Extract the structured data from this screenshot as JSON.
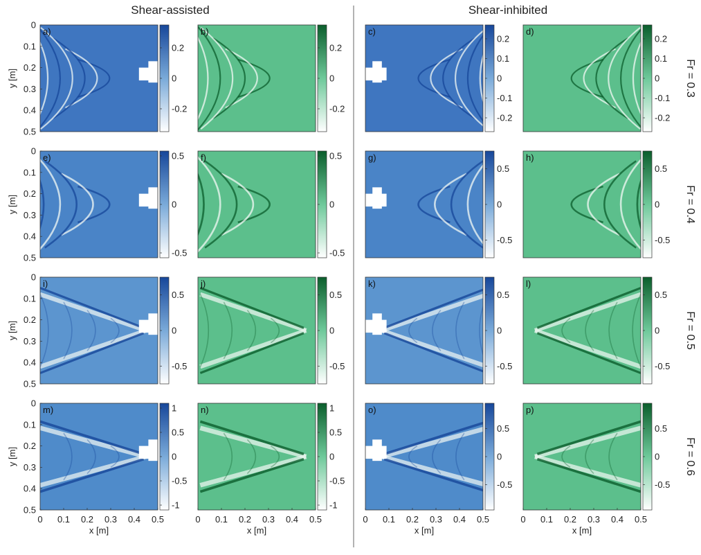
{
  "figure": {
    "group_titles": [
      "Shear-assisted",
      "Shear-inhibited"
    ],
    "row_labels": [
      "Fr = 0.3",
      "Fr = 0.4",
      "Fr = 0.5",
      "Fr = 0.6"
    ],
    "xlabel": "x [m]",
    "ylabel": "y [m]",
    "x_ticks": [
      "0",
      "0.1",
      "0.2",
      "0.3",
      "0.4",
      "0.5"
    ],
    "y_ticks": [
      "0",
      "0.1",
      "0.2",
      "0.3",
      "0.4",
      "0.5"
    ],
    "colors": {
      "measured_dark": "#17479a",
      "measured_mid": "#7aaad9",
      "measured_light": "#ffffff",
      "model_dark": "#0b5e2c",
      "model_mid": "#6ec99a",
      "model_light": "#ffffff",
      "divider": "#999999",
      "obstacle": "#ffffff"
    }
  },
  "chart_data": [
    {
      "panel": "a)",
      "type": "heatmap",
      "kind": "measured",
      "group": "Shear-assisted",
      "Fr": 0.3,
      "xlim": [
        0,
        0.5
      ],
      "ylim": [
        0.5,
        0
      ],
      "xlabel": "",
      "ylabel": "y [m]",
      "colorbar_range": [
        -0.35,
        0.35
      ],
      "colorbar_ticks": [
        "0.2",
        "0",
        "-0.2"
      ]
    },
    {
      "panel": "b)",
      "type": "heatmap",
      "kind": "model",
      "group": "Shear-assisted",
      "Fr": 0.3,
      "xlim": [
        0,
        0.5
      ],
      "ylim": [
        0.5,
        0
      ],
      "xlabel": "",
      "ylabel": "",
      "colorbar_range": [
        -0.35,
        0.35
      ],
      "colorbar_ticks": [
        "0.2",
        "0",
        "-0.2"
      ]
    },
    {
      "panel": "c)",
      "type": "heatmap",
      "kind": "measured",
      "group": "Shear-inhibited",
      "Fr": 0.3,
      "xlim": [
        0,
        0.5
      ],
      "ylim": [
        0.5,
        0
      ],
      "xlabel": "",
      "ylabel": "",
      "colorbar_range": [
        -0.27,
        0.27
      ],
      "colorbar_ticks": [
        "0.2",
        "0.1",
        "0",
        "-0.1",
        "-0.2"
      ]
    },
    {
      "panel": "d)",
      "type": "heatmap",
      "kind": "model",
      "group": "Shear-inhibited",
      "Fr": 0.3,
      "xlim": [
        0,
        0.5
      ],
      "ylim": [
        0.5,
        0
      ],
      "xlabel": "",
      "ylabel": "",
      "colorbar_range": [
        -0.27,
        0.27
      ],
      "colorbar_ticks": [
        "0.2",
        "0.1",
        "0",
        "-0.1",
        "-0.2"
      ]
    },
    {
      "panel": "e)",
      "type": "heatmap",
      "kind": "measured",
      "group": "Shear-assisted",
      "Fr": 0.4,
      "xlim": [
        0,
        0.5
      ],
      "ylim": [
        0.5,
        0
      ],
      "xlabel": "",
      "ylabel": "y [m]",
      "colorbar_range": [
        -0.55,
        0.55
      ],
      "colorbar_ticks": [
        "0.5",
        "0",
        "-0.5"
      ]
    },
    {
      "panel": "f)",
      "type": "heatmap",
      "kind": "model",
      "group": "Shear-assisted",
      "Fr": 0.4,
      "xlim": [
        0,
        0.5
      ],
      "ylim": [
        0.5,
        0
      ],
      "xlabel": "",
      "ylabel": "",
      "colorbar_range": [
        -0.55,
        0.55
      ],
      "colorbar_ticks": [
        "0.5",
        "0",
        "-0.5"
      ]
    },
    {
      "panel": "g)",
      "type": "heatmap",
      "kind": "measured",
      "group": "Shear-inhibited",
      "Fr": 0.4,
      "xlim": [
        0,
        0.5
      ],
      "ylim": [
        0.5,
        0
      ],
      "xlabel": "",
      "ylabel": "",
      "colorbar_range": [
        -0.75,
        0.75
      ],
      "colorbar_ticks": [
        "0.5",
        "0",
        "-0.5"
      ]
    },
    {
      "panel": "h)",
      "type": "heatmap",
      "kind": "model",
      "group": "Shear-inhibited",
      "Fr": 0.4,
      "xlim": [
        0,
        0.5
      ],
      "ylim": [
        0.5,
        0
      ],
      "xlabel": "",
      "ylabel": "",
      "colorbar_range": [
        -0.75,
        0.75
      ],
      "colorbar_ticks": [
        "0.5",
        "0",
        "-0.5"
      ]
    },
    {
      "panel": "i)",
      "type": "heatmap",
      "kind": "measured",
      "group": "Shear-assisted",
      "Fr": 0.5,
      "xlim": [
        0,
        0.5
      ],
      "ylim": [
        0.5,
        0
      ],
      "xlabel": "",
      "ylabel": "y [m]",
      "colorbar_range": [
        -0.75,
        0.75
      ],
      "colorbar_ticks": [
        "0.5",
        "0",
        "-0.5"
      ]
    },
    {
      "panel": "j)",
      "type": "heatmap",
      "kind": "model",
      "group": "Shear-assisted",
      "Fr": 0.5,
      "xlim": [
        0,
        0.5
      ],
      "ylim": [
        0.5,
        0
      ],
      "xlabel": "",
      "ylabel": "",
      "colorbar_range": [
        -0.75,
        0.75
      ],
      "colorbar_ticks": [
        "0.5",
        "0",
        "-0.5"
      ]
    },
    {
      "panel": "k)",
      "type": "heatmap",
      "kind": "measured",
      "group": "Shear-inhibited",
      "Fr": 0.5,
      "xlim": [
        0,
        0.5
      ],
      "ylim": [
        0.5,
        0
      ],
      "xlabel": "",
      "ylabel": "",
      "colorbar_range": [
        -0.75,
        0.75
      ],
      "colorbar_ticks": [
        "0.5",
        "0",
        "-0.5"
      ]
    },
    {
      "panel": "l)",
      "type": "heatmap",
      "kind": "model",
      "group": "Shear-inhibited",
      "Fr": 0.5,
      "xlim": [
        0,
        0.5
      ],
      "ylim": [
        0.5,
        0
      ],
      "xlabel": "",
      "ylabel": "",
      "colorbar_range": [
        -0.75,
        0.75
      ],
      "colorbar_ticks": [
        "0.5",
        "0",
        "-0.5"
      ]
    },
    {
      "panel": "m)",
      "type": "heatmap",
      "kind": "measured",
      "group": "Shear-assisted",
      "Fr": 0.6,
      "xlim": [
        0,
        0.5
      ],
      "ylim": [
        0.5,
        0
      ],
      "xlabel": "x [m]",
      "ylabel": "y [m]",
      "colorbar_range": [
        -1.1,
        1.1
      ],
      "colorbar_ticks": [
        "1",
        "0.5",
        "0",
        "-0.5",
        "-1"
      ]
    },
    {
      "panel": "n)",
      "type": "heatmap",
      "kind": "model",
      "group": "Shear-assisted",
      "Fr": 0.6,
      "xlim": [
        0,
        0.5
      ],
      "ylim": [
        0.5,
        0
      ],
      "xlabel": "x [m]",
      "ylabel": "",
      "colorbar_range": [
        -1.1,
        1.1
      ],
      "colorbar_ticks": [
        "1",
        "0.5",
        "0",
        "-0.5",
        "-1"
      ]
    },
    {
      "panel": "o)",
      "type": "heatmap",
      "kind": "measured",
      "group": "Shear-inhibited",
      "Fr": 0.6,
      "xlim": [
        0,
        0.5
      ],
      "ylim": [
        0.5,
        0
      ],
      "xlabel": "x [m]",
      "ylabel": "",
      "colorbar_range": [
        -0.95,
        0.95
      ],
      "colorbar_ticks": [
        "0.5",
        "0",
        "-0.5"
      ]
    },
    {
      "panel": "p)",
      "type": "heatmap",
      "kind": "model",
      "group": "Shear-inhibited",
      "Fr": 0.6,
      "xlim": [
        0,
        0.5
      ],
      "ylim": [
        0.5,
        0
      ],
      "xlabel": "x [m]",
      "ylabel": "",
      "colorbar_range": [
        -0.95,
        0.95
      ],
      "colorbar_ticks": [
        "0.5",
        "0",
        "-0.5"
      ]
    }
  ]
}
